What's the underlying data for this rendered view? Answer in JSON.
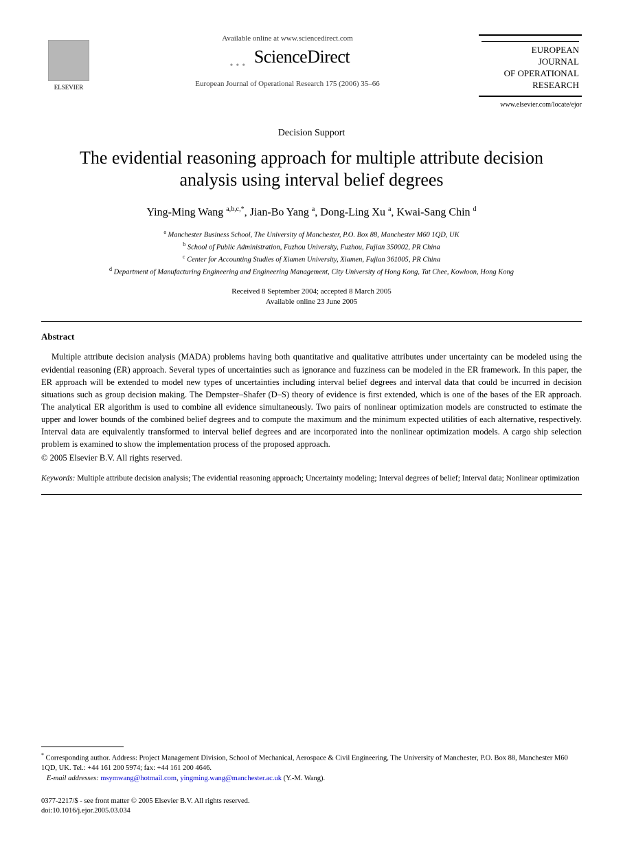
{
  "header": {
    "publisher_name": "ELSEVIER",
    "available_text": "Available online at www.sciencedirect.com",
    "platform_name": "ScienceDirect",
    "journal_reference": "European Journal of Operational Research 175 (2006) 35–66",
    "journal_box_lines": [
      "EUROPEAN",
      "JOURNAL",
      "OF OPERATIONAL",
      "RESEARCH"
    ],
    "journal_url": "www.elsevier.com/locate/ejor"
  },
  "article": {
    "section_label": "Decision Support",
    "title": "The evidential reasoning approach for multiple attribute decision analysis using interval belief degrees",
    "authors_html": "Ying-Ming Wang <sup>a,b,c,*</sup>, Jian-Bo Yang <sup>a</sup>, Dong-Ling Xu <sup>a</sup>, Kwai-Sang Chin <sup>d</sup>",
    "affiliations": [
      "Manchester Business School, The University of Manchester, P.O. Box 88, Manchester M60 1QD, UK",
      "School of Public Administration, Fuzhou University, Fuzhou, Fujian 350002, PR China",
      "Center for Accounting Studies of Xiamen University, Xiamen, Fujian 361005, PR China",
      "Department of Manufacturing Engineering and Engineering Management, City University of Hong Kong, Tat Chee, Kowloon, Hong Kong"
    ],
    "affiliation_markers": [
      "a",
      "b",
      "c",
      "d"
    ],
    "received": "Received 8 September 2004; accepted 8 March 2005",
    "available_online": "Available online 23 June 2005"
  },
  "abstract": {
    "heading": "Abstract",
    "body": "Multiple attribute decision analysis (MADA) problems having both quantitative and qualitative attributes under uncertainty can be modeled using the evidential reasoning (ER) approach. Several types of uncertainties such as ignorance and fuzziness can be modeled in the ER framework. In this paper, the ER approach will be extended to model new types of uncertainties including interval belief degrees and interval data that could be incurred in decision situations such as group decision making. The Dempster–Shafer (D–S) theory of evidence is first extended, which is one of the bases of the ER approach. The analytical ER algorithm is used to combine all evidence simultaneously. Two pairs of nonlinear optimization models are constructed to estimate the upper and lower bounds of the combined belief degrees and to compute the maximum and the minimum expected utilities of each alternative, respectively. Interval data are equivalently transformed to interval belief degrees and are incorporated into the nonlinear optimization models. A cargo ship selection problem is examined to show the implementation process of the proposed approach.",
    "copyright": "© 2005 Elsevier B.V. All rights reserved."
  },
  "keywords": {
    "label": "Keywords:",
    "text": "Multiple attribute decision analysis; The evidential reasoning approach; Uncertainty modeling; Interval degrees of belief; Interval data; Nonlinear optimization"
  },
  "footnote": {
    "corresponding": "Corresponding author. Address: Project Management Division, School of Mechanical, Aerospace & Civil Engineering, The University of Manchester, P.O. Box 88, Manchester M60 1QD, UK. Tel.: +44 161 200 5974; fax: +44 161 200 4646.",
    "email_label": "E-mail addresses:",
    "emails": [
      "msymwang@hotmail.com",
      "yingming.wang@manchester.ac.uk"
    ],
    "email_author": "(Y.-M. Wang)."
  },
  "doi": {
    "front_matter": "0377-2217/$ - see front matter © 2005 Elsevier B.V. All rights reserved.",
    "doi_line": "doi:10.1016/j.ejor.2005.03.034"
  },
  "style": {
    "background": "#ffffff",
    "text_color": "#000000",
    "link_color": "#0000cc",
    "title_fontsize": 26,
    "body_fontsize": 12.5,
    "footnote_fontsize": 10.5,
    "font_family": "Georgia, Times New Roman, serif"
  }
}
